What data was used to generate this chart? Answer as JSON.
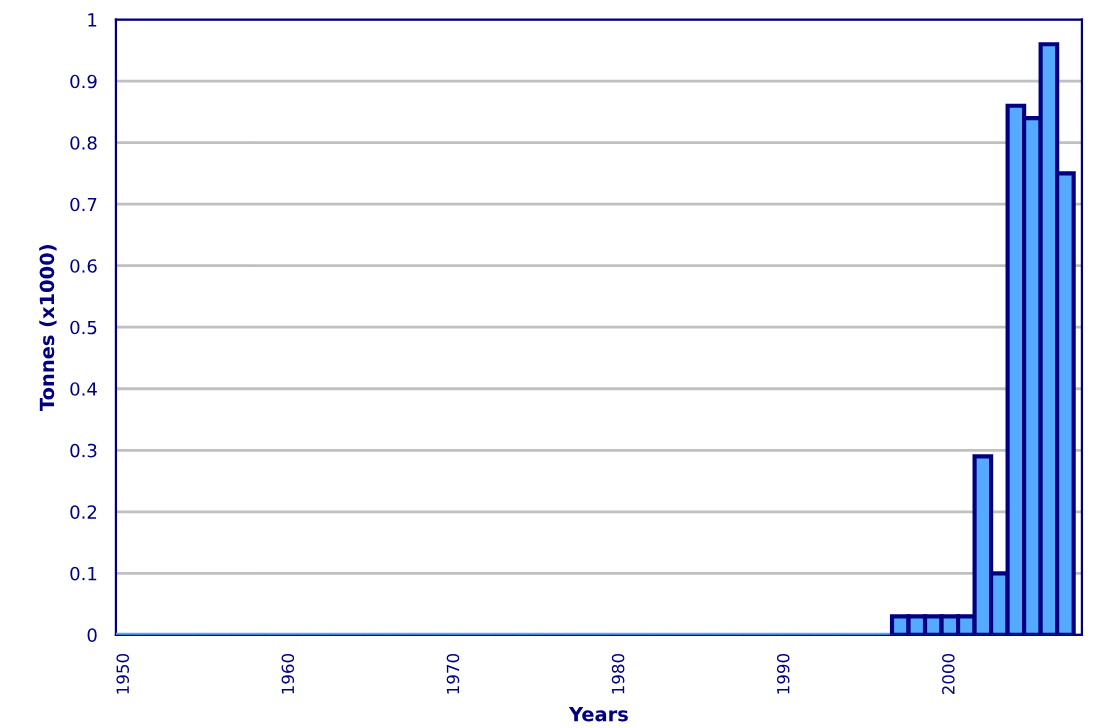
{
  "chart_data": {
    "type": "bar",
    "xlabel": "Years",
    "ylabel": "Tonnes (x1000)",
    "x": [
      1950,
      1951,
      1952,
      1953,
      1954,
      1955,
      1956,
      1957,
      1958,
      1959,
      1960,
      1961,
      1962,
      1963,
      1964,
      1965,
      1966,
      1967,
      1968,
      1969,
      1970,
      1971,
      1972,
      1973,
      1974,
      1975,
      1976,
      1977,
      1978,
      1979,
      1980,
      1981,
      1982,
      1983,
      1984,
      1985,
      1986,
      1987,
      1988,
      1989,
      1990,
      1991,
      1992,
      1993,
      1994,
      1995,
      1996,
      1997,
      1998,
      1999,
      2000,
      2001,
      2002,
      2003,
      2004,
      2005,
      2006,
      2007
    ],
    "values": [
      0,
      0,
      0,
      0,
      0,
      0,
      0,
      0,
      0,
      0,
      0,
      0,
      0,
      0,
      0,
      0,
      0,
      0,
      0,
      0,
      0,
      0,
      0,
      0,
      0,
      0,
      0,
      0,
      0,
      0,
      0,
      0,
      0,
      0,
      0,
      0,
      0,
      0,
      0,
      0,
      0,
      0,
      0,
      0,
      0,
      0,
      0,
      0.03,
      0.03,
      0.03,
      0.03,
      0.03,
      0.29,
      0.1,
      0.86,
      0.84,
      0.96,
      0.75
    ],
    "color": "#55aaff",
    "xlim": [
      1949.5,
      2008
    ],
    "xticks": [
      1950,
      1960,
      1970,
      1980,
      1990,
      2000
    ],
    "ylim": [
      0,
      1
    ],
    "yticks": [
      0,
      0.1,
      0.2,
      0.3,
      0.4,
      0.5,
      0.6,
      0.7,
      0.8,
      0.9,
      1
    ],
    "grid": "y"
  }
}
